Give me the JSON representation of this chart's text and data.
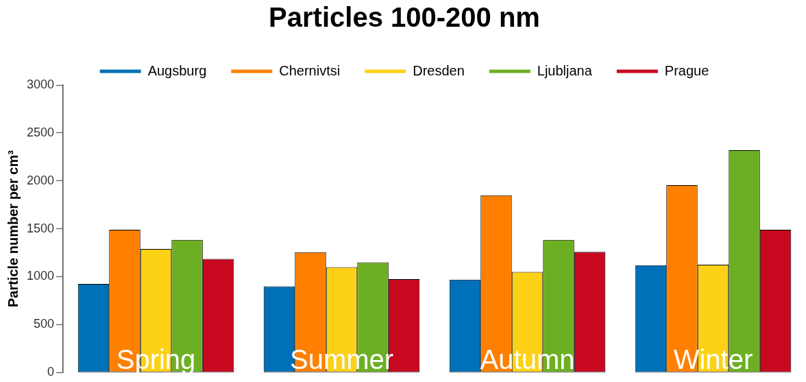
{
  "chart_data": {
    "type": "bar",
    "title": "Particles 100-200 nm",
    "ylabel": "Particle number per cm³",
    "categories": [
      "Spring",
      "Summer",
      "Autumn",
      "Winter"
    ],
    "series": [
      {
        "name": "Augsburg",
        "color": "#0070b8",
        "values": [
          925,
          900,
          970,
          1120
        ]
      },
      {
        "name": "Chernivtsi",
        "color": "#ff8000",
        "values": [
          1490,
          1255,
          1850,
          1955
        ]
      },
      {
        "name": "Dresden",
        "color": "#fcd116",
        "values": [
          1290,
          1100,
          1050,
          1125
        ]
      },
      {
        "name": "Ljubljana",
        "color": "#6daf22",
        "values": [
          1385,
          1150,
          1385,
          2320
        ]
      },
      {
        "name": "Prague",
        "color": "#c8081e",
        "values": [
          1185,
          975,
          1260,
          1490
        ]
      }
    ],
    "ylim": [
      0,
      3000
    ],
    "yticks": [
      0,
      500,
      1000,
      1500,
      2000,
      2500,
      3000
    ],
    "grid": false,
    "legend": "top"
  }
}
